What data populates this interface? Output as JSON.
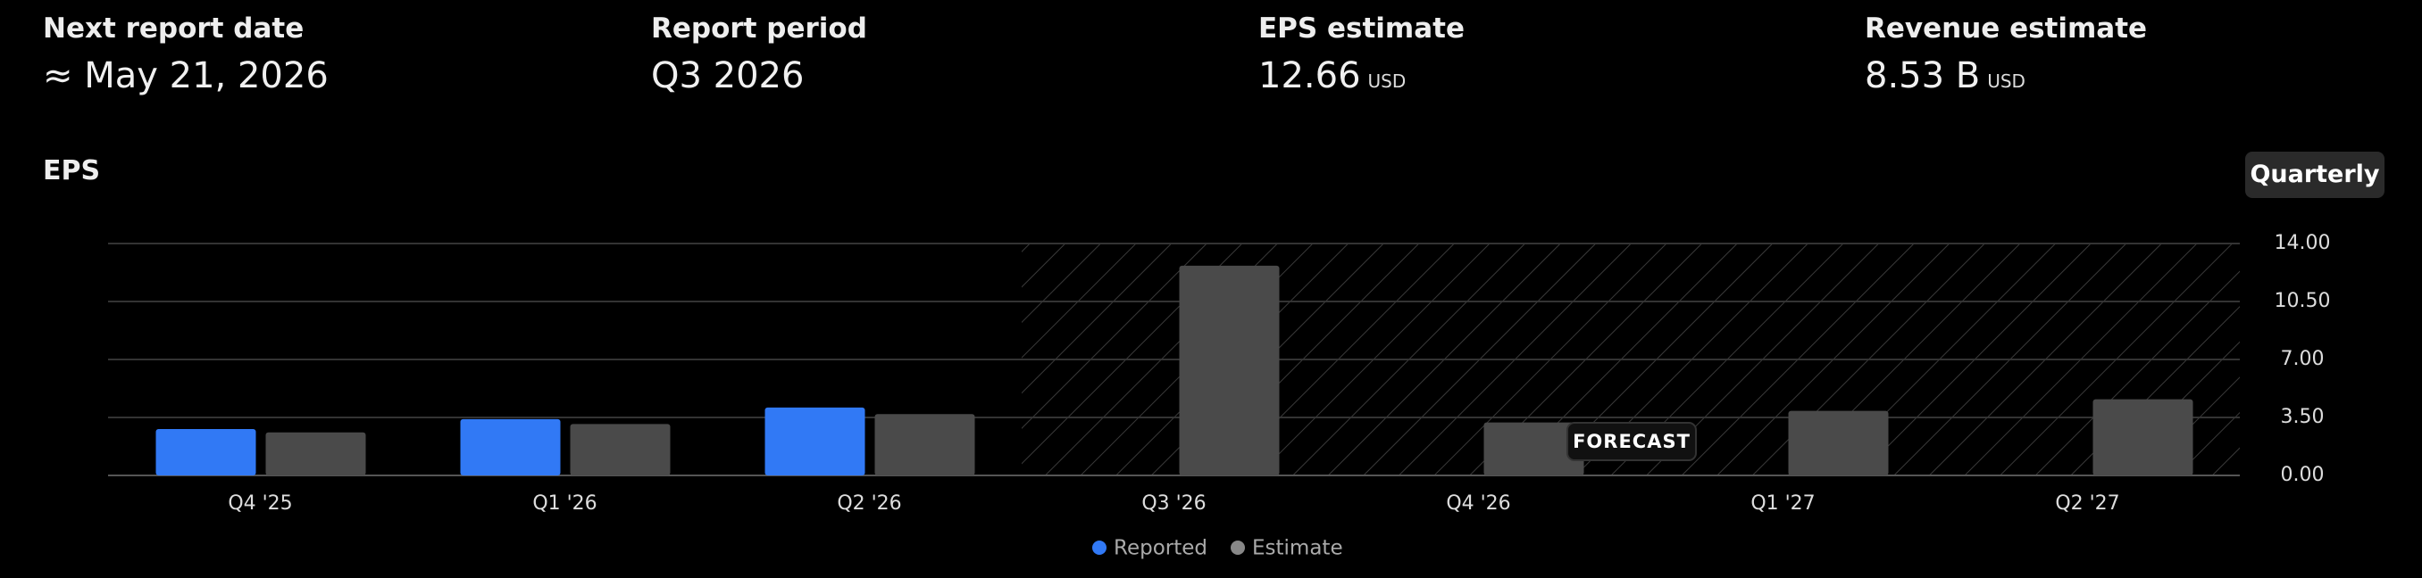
{
  "header": {
    "stats": [
      {
        "label": "Next report date",
        "value": "≈ May 21, 2026"
      },
      {
        "label": "Report period",
        "value": "Q3 2026"
      },
      {
        "label": "EPS estimate",
        "value": "12.66",
        "unit": "USD"
      },
      {
        "label": "Revenue estimate",
        "value": "8.53 B",
        "unit": "USD"
      }
    ]
  },
  "chart_data": {
    "type": "bar",
    "title": "EPS",
    "toggle": "Quarterly",
    "annotation": "FORECAST",
    "categories": [
      "Q4 '25",
      "Q1 '26",
      "Q2 '26",
      "Q3 '26",
      "Q4 '26",
      "Q1 '27",
      "Q2 '27"
    ],
    "series": [
      {
        "name": "Reported",
        "color": "#3179f5",
        "values": [
          2.8,
          3.4,
          4.1,
          null,
          null,
          null,
          null
        ]
      },
      {
        "name": "Estimate",
        "color": "#4a4a4a",
        "values": [
          2.6,
          3.1,
          3.7,
          12.66,
          3.2,
          3.9,
          4.6
        ]
      }
    ],
    "ylim": [
      0,
      14
    ],
    "yticks": [
      {
        "value": 0,
        "label": "0.00"
      },
      {
        "value": 3.5,
        "label": "3.50"
      },
      {
        "value": 7,
        "label": "7.00"
      },
      {
        "value": 10.5,
        "label": "10.50"
      },
      {
        "value": 14,
        "label": "14.00"
      }
    ],
    "grid": true
  }
}
